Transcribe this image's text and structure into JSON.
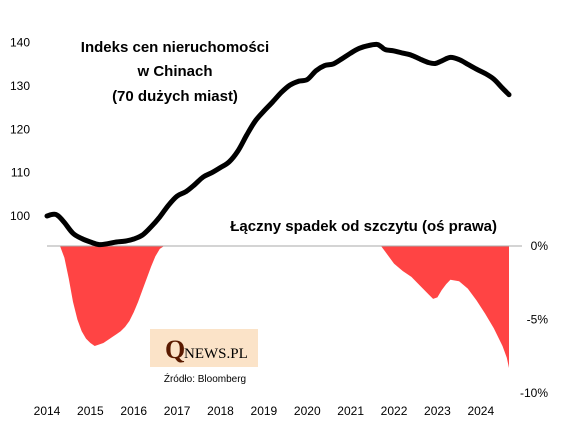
{
  "chart_data": {
    "type": "line",
    "title_lines": [
      "Indeks cen nieruchomości",
      "w Chinach",
      "(70 dużych miast)"
    ],
    "drawdown_label": "Łączny spadek od szczytu (oś prawa)",
    "source": "Źródło: Bloomberg",
    "logo": {
      "big": "Q",
      "small": "NEWS.PL"
    },
    "x_ticks": [
      "2014",
      "2015",
      "2016",
      "2017",
      "2018",
      "2019",
      "2020",
      "2021",
      "2022",
      "2023",
      "2024"
    ],
    "xlim": [
      2014,
      2024.95
    ],
    "y_left_ticks": [
      100,
      110,
      120,
      130,
      140
    ],
    "y_left_tick_labels": [
      "100",
      "110",
      "120",
      "130",
      "140"
    ],
    "ylim_left": [
      91,
      142
    ],
    "y_right_ticks": [
      0,
      -5,
      -10
    ],
    "y_right_tick_labels": [
      "0%",
      "-5%",
      "-10%"
    ],
    "ylim_right": [
      -10,
      0
    ],
    "colors": {
      "line": "#000000",
      "area": "#ff4444",
      "zero_line": "#aaaaaa",
      "logo_bg": "#fbe3c8",
      "logo_q": "#5a1a00"
    },
    "series": [
      {
        "kind": "line",
        "axis": "left",
        "x": [
          2014.0,
          2014.15,
          2014.25,
          2014.4,
          2014.6,
          2014.8,
          2015.0,
          2015.2,
          2015.4,
          2015.6,
          2015.8,
          2016.0,
          2016.2,
          2016.4,
          2016.6,
          2016.8,
          2017.0,
          2017.2,
          2017.4,
          2017.6,
          2017.8,
          2018.0,
          2018.2,
          2018.4,
          2018.6,
          2018.8,
          2019.0,
          2019.2,
          2019.4,
          2019.6,
          2019.8,
          2020.0,
          2020.2,
          2020.4,
          2020.6,
          2020.8,
          2021.0,
          2021.2,
          2021.4,
          2021.6,
          2021.7,
          2021.8,
          2022.0,
          2022.2,
          2022.4,
          2022.6,
          2022.8,
          2022.95,
          2023.1,
          2023.3,
          2023.5,
          2023.7,
          2023.9,
          2024.1,
          2024.3,
          2024.5,
          2024.65
        ],
        "y": [
          100.0,
          100.4,
          100.1,
          98.5,
          96.0,
          94.8,
          94.0,
          93.4,
          93.6,
          94.0,
          94.2,
          94.7,
          95.6,
          97.5,
          99.8,
          102.5,
          104.6,
          105.6,
          107.2,
          109.0,
          110.0,
          111.2,
          112.5,
          115.0,
          118.6,
          121.9,
          124.2,
          126.3,
          128.5,
          130.2,
          131.1,
          131.5,
          133.5,
          134.7,
          135.1,
          136.3,
          137.6,
          138.7,
          139.3,
          139.6,
          139.1,
          138.4,
          138.1,
          137.6,
          137.1,
          136.2,
          135.4,
          135.2,
          135.8,
          136.6,
          136.1,
          135.0,
          133.9,
          132.9,
          131.6,
          129.5,
          128.0
        ]
      },
      {
        "kind": "area",
        "axis": "right",
        "segments": [
          {
            "x": [
              2014.3,
              2014.4,
              2014.5,
              2014.6,
              2014.7,
              2014.8,
              2014.9,
              2015.0,
              2015.1,
              2015.2,
              2015.3,
              2015.4,
              2015.5,
              2015.6,
              2015.7,
              2015.8,
              2015.9,
              2016.0,
              2016.1,
              2016.2,
              2016.3,
              2016.4,
              2016.5,
              2016.6,
              2016.7
            ],
            "y": [
              0,
              -0.8,
              -2.2,
              -3.8,
              -5.0,
              -5.8,
              -6.3,
              -6.6,
              -6.8,
              -6.7,
              -6.6,
              -6.4,
              -6.2,
              -6.0,
              -5.8,
              -5.5,
              -5.1,
              -4.5,
              -3.8,
              -3.0,
              -2.2,
              -1.4,
              -0.7,
              -0.2,
              0
            ]
          },
          {
            "x": [
              2021.7,
              2021.8,
              2022.0,
              2022.2,
              2022.4,
              2022.6,
              2022.8,
              2022.9,
              2023.0,
              2023.1,
              2023.2,
              2023.3,
              2023.5,
              2023.7,
              2023.9,
              2024.1,
              2024.3,
              2024.5,
              2024.6,
              2024.65,
              2024.65
            ],
            "y": [
              0,
              -0.4,
              -1.2,
              -1.7,
              -2.1,
              -2.7,
              -3.3,
              -3.6,
              -3.5,
              -3.0,
              -2.6,
              -2.3,
              -2.4,
              -2.9,
              -3.7,
              -4.6,
              -5.6,
              -6.8,
              -7.6,
              -8.3,
              0
            ]
          }
        ]
      }
    ]
  }
}
